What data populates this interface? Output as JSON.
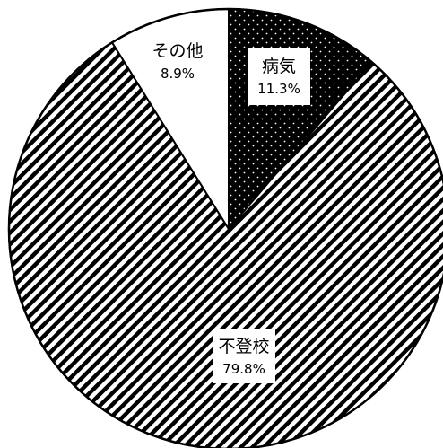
{
  "chart_data": {
    "type": "pie",
    "title": "",
    "start_angle_deg": 0,
    "direction": "clockwise",
    "slices": [
      {
        "label": "病気",
        "value": 11.3,
        "value_label": "11.3%",
        "pattern": "dots"
      },
      {
        "label": "不登校",
        "value": 79.8,
        "value_label": "79.8%",
        "pattern": "diagonal-stripes"
      },
      {
        "label": "その他",
        "value": 8.9,
        "value_label": "8.9%",
        "pattern": "white"
      }
    ],
    "colors": {
      "outline": "#000000",
      "background": "#ffffff",
      "fill_dark": "#000000",
      "fill_light": "#ffffff"
    }
  }
}
